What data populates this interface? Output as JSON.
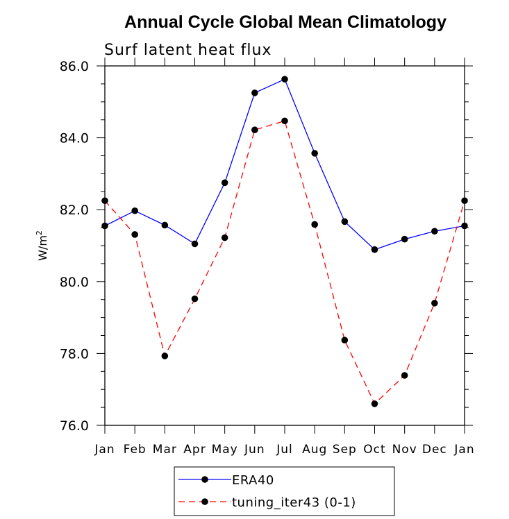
{
  "chart_data": {
    "type": "line",
    "title": "Annual Cycle Global Mean Climatology",
    "subtitle": "Surf latent heat flux",
    "xlabel": "",
    "ylabel": "W/m",
    "ylabel_superscript": "2",
    "categories": [
      "Jan",
      "Feb",
      "Mar",
      "Apr",
      "May",
      "Jun",
      "Jul",
      "Aug",
      "Sep",
      "Oct",
      "Nov",
      "Dec",
      "Jan"
    ],
    "ylim": [
      76.0,
      86.0
    ],
    "yticks": [
      "76.0",
      "78.0",
      "80.0",
      "82.0",
      "84.0",
      "86.0"
    ],
    "series": [
      {
        "name": "ERA40",
        "color": "#0000ff",
        "dash": "solid",
        "values": [
          81.55,
          81.97,
          81.57,
          81.05,
          82.75,
          85.25,
          85.63,
          83.57,
          81.67,
          80.89,
          81.18,
          81.4,
          81.55
        ]
      },
      {
        "name": "tuning_iter43 (0-1)",
        "color": "#ff0000",
        "dash": "dashed",
        "values": [
          82.25,
          81.31,
          77.93,
          79.52,
          81.22,
          84.22,
          84.47,
          81.59,
          78.37,
          76.6,
          77.39,
          79.4,
          82.25
        ]
      }
    ],
    "legend_position": "bottom-center",
    "marker_color": "#000000"
  }
}
